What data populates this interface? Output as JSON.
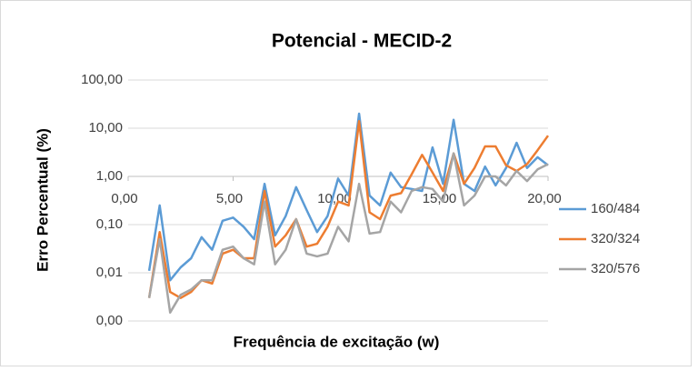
{
  "chart_data": {
    "type": "line",
    "title": "Potencial - MECID-2",
    "xlabel": "Frequência de excitação (w)",
    "ylabel": "Erro Percentual (%)",
    "x": [
      1,
      1.5,
      2,
      2.5,
      3,
      3.5,
      4,
      4.5,
      5,
      5.5,
      6,
      6.5,
      7,
      7.5,
      8,
      8.5,
      9,
      9.5,
      10,
      10.5,
      11,
      11.5,
      12,
      12.5,
      13,
      13.5,
      14,
      14.5,
      15,
      15.5,
      16,
      16.5,
      17,
      17.5,
      18,
      18.5,
      19,
      19.5,
      20
    ],
    "series": [
      {
        "name": "160/484",
        "color": "#5b9bd5",
        "values": [
          0.011,
          0.25,
          0.007,
          0.013,
          0.02,
          0.055,
          0.03,
          0.12,
          0.14,
          0.09,
          0.05,
          0.7,
          0.06,
          0.15,
          0.6,
          0.2,
          0.07,
          0.15,
          0.9,
          0.4,
          20,
          0.4,
          0.25,
          1.2,
          0.6,
          0.55,
          0.5,
          4,
          0.7,
          15,
          0.7,
          0.5,
          1.6,
          0.65,
          1.5,
          5,
          1.5,
          2.5,
          1.7
        ]
      },
      {
        "name": "320/324",
        "color": "#ed7d31",
        "values": [
          0.003,
          0.07,
          0.004,
          0.003,
          0.004,
          0.007,
          0.006,
          0.025,
          0.03,
          0.02,
          0.02,
          0.5,
          0.035,
          0.06,
          0.13,
          0.035,
          0.04,
          0.09,
          0.3,
          0.25,
          14,
          0.18,
          0.13,
          0.4,
          0.45,
          1.1,
          2.8,
          1.2,
          0.5,
          3,
          0.7,
          1.5,
          4.2,
          4.2,
          1.7,
          1.3,
          1.8,
          3.5,
          7
        ]
      },
      {
        "name": "320/576",
        "color": "#a5a5a5",
        "values": [
          0.003,
          0.05,
          0.0015,
          0.0035,
          0.0045,
          0.007,
          0.007,
          0.03,
          0.035,
          0.02,
          0.015,
          0.3,
          0.015,
          0.03,
          0.13,
          0.025,
          0.022,
          0.025,
          0.09,
          0.045,
          0.7,
          0.065,
          0.07,
          0.3,
          0.18,
          0.5,
          0.6,
          0.55,
          0.3,
          3,
          0.25,
          0.4,
          1,
          1,
          0.65,
          1.3,
          0.8,
          1.4,
          1.8
        ]
      }
    ],
    "xlim": [
      0,
      20
    ],
    "xticks": [
      {
        "value": 0,
        "label": "0,00"
      },
      {
        "value": 5,
        "label": "5,00"
      },
      {
        "value": 10,
        "label": "10,00"
      },
      {
        "value": 15,
        "label": "15,00"
      },
      {
        "value": 20,
        "label": "20,00"
      }
    ],
    "ylim": [
      0.001,
      100
    ],
    "ylog": true,
    "xaxis_cross": 1,
    "yticks": [
      {
        "value": 0.001,
        "label": "0,00"
      },
      {
        "value": 0.01,
        "label": "0,01"
      },
      {
        "value": 0.1,
        "label": "0,10"
      },
      {
        "value": 1,
        "label": "1,00"
      },
      {
        "value": 10,
        "label": "10,00"
      },
      {
        "value": 100,
        "label": "100,00"
      }
    ],
    "grid": true,
    "legend": "right"
  }
}
